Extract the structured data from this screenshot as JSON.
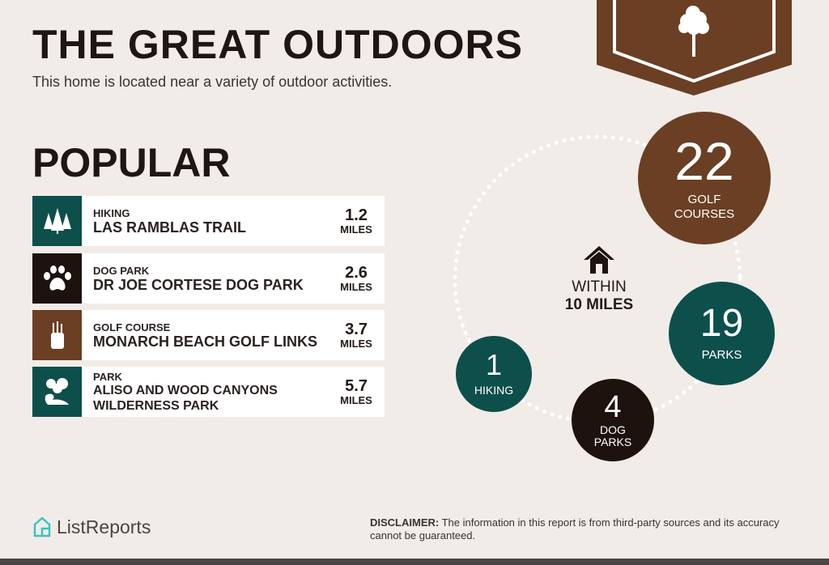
{
  "header": {
    "title": "THE GREAT OUTDOORS",
    "subtitle": "This home is located near a variety of outdoor activities.",
    "badge_icon": "tree-icon"
  },
  "popular": {
    "heading": "POPULAR",
    "items": [
      {
        "category": "HIKING",
        "name": "LAS RAMBLAS TRAIL",
        "distance": "1.2",
        "unit": "MILES",
        "icon": "trees-icon",
        "color": "#0d4f4a"
      },
      {
        "category": "DOG PARK",
        "name": "DR JOE CORTESE DOG PARK",
        "distance": "2.6",
        "unit": "MILES",
        "icon": "paw-icon",
        "color": "#1e120e"
      },
      {
        "category": "GOLF COURSE",
        "name": "MONARCH BEACH GOLF LINKS",
        "distance": "3.7",
        "unit": "MILES",
        "icon": "golf-bag-icon",
        "color": "#6b3f24"
      },
      {
        "category": "PARK",
        "name": "ALISO AND WOOD CANYONS WILDERNESS PARK",
        "distance": "5.7",
        "unit": "MILES",
        "icon": "park-icon",
        "color": "#0d4f4a"
      }
    ]
  },
  "nearby": {
    "center_line1": "WITHIN",
    "center_line2": "10 MILES",
    "center_icon": "home-icon",
    "counts": [
      {
        "value": "22",
        "label1": "GOLF",
        "label2": "COURSES",
        "color": "#6b3f24"
      },
      {
        "value": "19",
        "label1": "PARKS",
        "label2": "",
        "color": "#0d4f4a"
      },
      {
        "value": "4",
        "label1": "DOG",
        "label2": "PARKS",
        "color": "#1e120e"
      },
      {
        "value": "1",
        "label1": "HIKING",
        "label2": "",
        "color": "#0d4f4a"
      }
    ]
  },
  "footer": {
    "logo": "ListReports",
    "disclaimer_label": "DISCLAIMER:",
    "disclaimer_text": " The information in this report is from third-party sources and its accuracy cannot be guaranteed."
  }
}
